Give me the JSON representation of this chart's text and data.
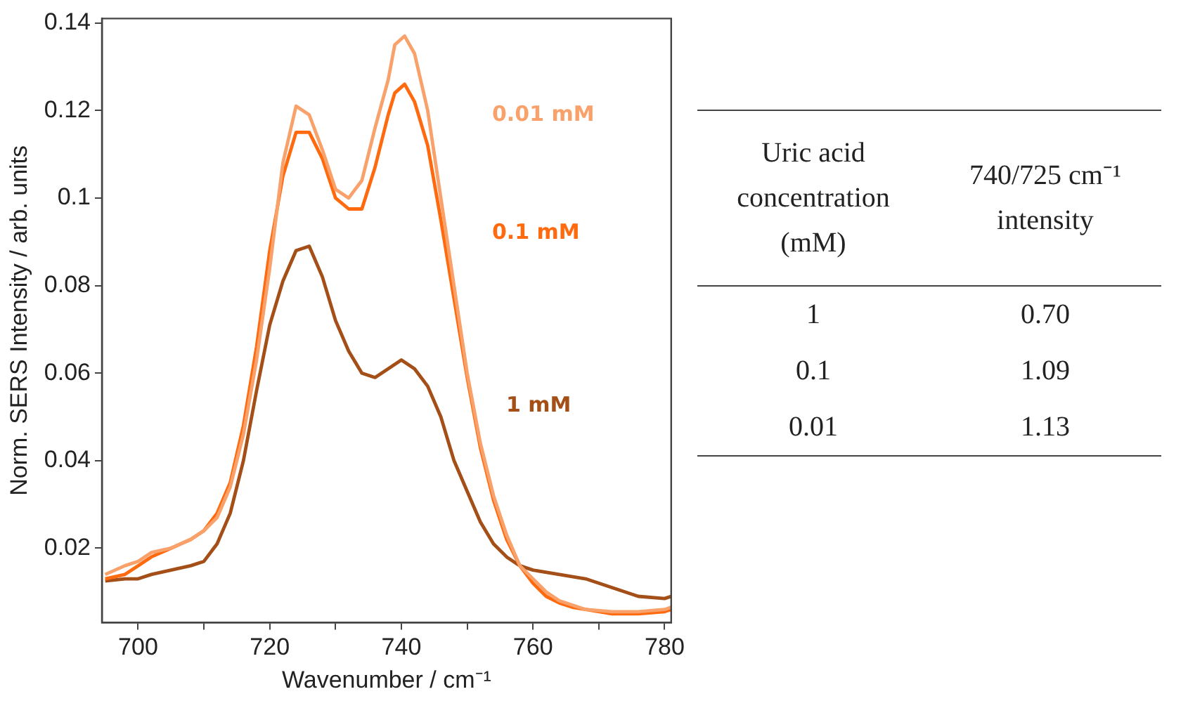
{
  "chart_data": {
    "type": "line",
    "xlabel": "Wavenumber / cm⁻¹",
    "ylabel": "Norm. SERS Intensity / arb. units",
    "xlim": [
      694.5,
      781
    ],
    "ylim": [
      0.003,
      0.141
    ],
    "xticks": [
      700,
      {
        "value": 710,
        "label": null
      },
      720,
      {
        "value": 730,
        "label": null
      },
      740,
      {
        "value": 750,
        "label": null
      },
      760,
      {
        "value": 770,
        "label": null
      },
      780
    ],
    "yticks": [
      0.02,
      0.04,
      0.06,
      0.08,
      0.1,
      0.12,
      0.14
    ],
    "grid": false,
    "legend": false,
    "marker": "none",
    "line_style": "solid",
    "series": [
      {
        "name": "0.01 mM",
        "color": "#f9a16a",
        "x": [
          695,
          698,
          700,
          702,
          705,
          708,
          710,
          712,
          714,
          716,
          718,
          720,
          722,
          724,
          726,
          728,
          730,
          732,
          734,
          736,
          738,
          739,
          740.5,
          742,
          744,
          746,
          748,
          750,
          752,
          754,
          756,
          758,
          760,
          762,
          764,
          766,
          768,
          772,
          776,
          780,
          781
        ],
        "values": [
          0.014,
          0.016,
          0.017,
          0.019,
          0.02,
          0.022,
          0.024,
          0.027,
          0.034,
          0.046,
          0.063,
          0.084,
          0.108,
          0.121,
          0.119,
          0.111,
          0.102,
          0.1,
          0.104,
          0.116,
          0.127,
          0.135,
          0.137,
          0.133,
          0.12,
          0.1,
          0.08,
          0.06,
          0.044,
          0.032,
          0.023,
          0.016,
          0.013,
          0.01,
          0.008,
          0.007,
          0.006,
          0.0055,
          0.0055,
          0.006,
          0.0065
        ]
      },
      {
        "name": "0.1 mM",
        "color": "#ff6a0e",
        "x": [
          695,
          698,
          700,
          702,
          705,
          708,
          710,
          712,
          714,
          716,
          718,
          720,
          722,
          724,
          726,
          728,
          730,
          732,
          734,
          736,
          738,
          739,
          740.5,
          742,
          744,
          746,
          748,
          750,
          752,
          754,
          756,
          758,
          760,
          762,
          764,
          766,
          768,
          772,
          776,
          780,
          781
        ],
        "values": [
          0.013,
          0.014,
          0.016,
          0.018,
          0.02,
          0.022,
          0.024,
          0.028,
          0.035,
          0.048,
          0.066,
          0.088,
          0.105,
          0.115,
          0.115,
          0.109,
          0.1,
          0.0975,
          0.0975,
          0.107,
          0.119,
          0.124,
          0.126,
          0.122,
          0.112,
          0.095,
          0.077,
          0.059,
          0.043,
          0.031,
          0.022,
          0.016,
          0.012,
          0.009,
          0.0075,
          0.0065,
          0.006,
          0.005,
          0.005,
          0.0055,
          0.006
        ]
      },
      {
        "name": "1 mM",
        "color": "#a34f17",
        "x": [
          695,
          698,
          700,
          702,
          705,
          708,
          710,
          712,
          714,
          716,
          718,
          720,
          722,
          724,
          726,
          728,
          730,
          732,
          734,
          736,
          738,
          740,
          742,
          744,
          746,
          748,
          750,
          752,
          754,
          756,
          758,
          760,
          764,
          768,
          772,
          776,
          780,
          781
        ],
        "values": [
          0.0125,
          0.013,
          0.013,
          0.014,
          0.015,
          0.016,
          0.017,
          0.021,
          0.028,
          0.04,
          0.056,
          0.071,
          0.081,
          0.088,
          0.089,
          0.082,
          0.072,
          0.065,
          0.06,
          0.059,
          0.061,
          0.063,
          0.061,
          0.057,
          0.05,
          0.04,
          0.033,
          0.026,
          0.021,
          0.018,
          0.016,
          0.015,
          0.014,
          0.013,
          0.011,
          0.009,
          0.0085,
          0.009
        ]
      }
    ],
    "annotations": [
      "Uric acid concentration (mM)",
      "740/725 cm⁻¹ intensity",
      "1",
      "0.70",
      "0.1",
      "1.09",
      "0.01",
      "1.13"
    ]
  }
}
